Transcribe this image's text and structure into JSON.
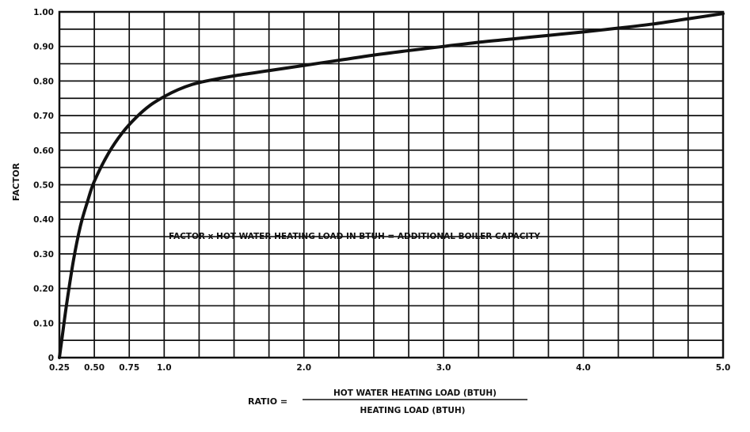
{
  "chart_data": {
    "type": "line",
    "title": "",
    "xlabel": {
      "prefix": "RATIO =",
      "numerator": "HOT WATER HEATING LOAD (BTUH)",
      "denominator": "HEATING LOAD (BTUH)"
    },
    "ylabel": "FACTOR",
    "xlim": [
      0.25,
      5.0
    ],
    "ylim": [
      0,
      1.0
    ],
    "grid": true,
    "x_ticks": [
      {
        "value": 0.25,
        "label": "0.25"
      },
      {
        "value": 0.5,
        "label": "0.50"
      },
      {
        "value": 0.75,
        "label": "0.75"
      },
      {
        "value": 1.0,
        "label": "1.0"
      },
      {
        "value": 2.0,
        "label": "2.0"
      },
      {
        "value": 3.0,
        "label": "3.0"
      },
      {
        "value": 4.0,
        "label": "4.0"
      },
      {
        "value": 5.0,
        "label": "5.0"
      }
    ],
    "y_ticks": [
      {
        "value": 0,
        "label": "0"
      },
      {
        "value": 0.1,
        "label": "0.10"
      },
      {
        "value": 0.2,
        "label": "0.20"
      },
      {
        "value": 0.3,
        "label": "0.30"
      },
      {
        "value": 0.4,
        "label": "0.40"
      },
      {
        "value": 0.5,
        "label": "0.50"
      },
      {
        "value": 0.6,
        "label": "0.60"
      },
      {
        "value": 0.7,
        "label": "0.70"
      },
      {
        "value": 0.8,
        "label": "0.80"
      },
      {
        "value": 0.9,
        "label": "0.90"
      },
      {
        "value": 1.0,
        "label": "1.00"
      }
    ],
    "annotation": "FACTOR x HOT WATER HEATING LOAD IN BTUH = ADDITIONAL BOILER CAPACITY",
    "series": [
      {
        "x": [
          0.25,
          0.27,
          0.3,
          0.35,
          0.4,
          0.45,
          0.5,
          0.6,
          0.7,
          0.8,
          0.9,
          1.0,
          1.1,
          1.2,
          1.3,
          1.5,
          1.75,
          2.0,
          2.25,
          2.5,
          2.75,
          3.0,
          3.25,
          3.5,
          3.75,
          4.0,
          4.25,
          4.5,
          4.75,
          5.0
        ],
        "y": [
          0.0,
          0.06,
          0.15,
          0.28,
          0.38,
          0.45,
          0.51,
          0.59,
          0.65,
          0.695,
          0.73,
          0.755,
          0.775,
          0.79,
          0.8,
          0.815,
          0.83,
          0.845,
          0.86,
          0.875,
          0.888,
          0.9,
          0.912,
          0.922,
          0.932,
          0.942,
          0.953,
          0.965,
          0.98,
          0.995
        ]
      }
    ]
  }
}
